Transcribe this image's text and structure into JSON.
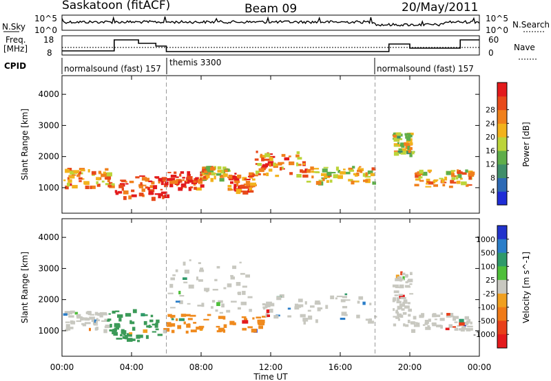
{
  "header": {
    "station": "Saskatoon (fitACF)",
    "beam": "Beam 09",
    "date": "20/May/2011"
  },
  "noise_panel": {
    "left_label": "N.Sky",
    "right_label": "N.Search",
    "left_ticks": [
      "10^5",
      "10^0"
    ],
    "right_ticks": [
      "10^5",
      "10^0"
    ]
  },
  "freq_panel": {
    "label_top": "Freq.",
    "label_unit": "[MHz]",
    "left_ticks": [
      "18",
      "8"
    ],
    "right_ticks": [
      "60",
      "0"
    ],
    "right_label": "Nave"
  },
  "cpid": {
    "label": "CPID",
    "segments": [
      {
        "name": "normalsound (fast) 157",
        "start_hour": 0.0
      },
      {
        "name": "themis 3300",
        "start_hour": 6.0
      },
      {
        "name": "normalsound (fast) 157",
        "start_hour": 18.0
      }
    ]
  },
  "chart_data": [
    {
      "type": "heatmap",
      "name": "Power",
      "ylabel": "Slant Range [km]",
      "yticks": [
        1000,
        2000,
        3000,
        4000
      ],
      "ylim": [
        180,
        4600
      ],
      "xlim_hours": [
        0,
        24
      ],
      "colorbar": {
        "label": "Power [dB]",
        "ticks": [
          "4",
          "8",
          "12",
          "16",
          "20",
          "24",
          "28"
        ],
        "colors": [
          "#1f2dd6",
          "#2d6ab5",
          "#3f8e6a",
          "#5fae4a",
          "#bcd43a",
          "#f2b21c",
          "#f0801c",
          "#e84a1a",
          "#e31a1c"
        ]
      },
      "bands": [
        {
          "t0": 0.0,
          "t1": 3.0,
          "r0": 1050,
          "r1": 1650,
          "level": 0.7
        },
        {
          "t0": 3.0,
          "t1": 6.0,
          "r0": 700,
          "r1": 1400,
          "level": 0.95
        },
        {
          "t0": 6.0,
          "t1": 8.0,
          "r0": 1000,
          "r1": 1550,
          "level": 0.9
        },
        {
          "t0": 8.0,
          "t1": 9.5,
          "r0": 1300,
          "r1": 1700,
          "level": 0.6
        },
        {
          "t0": 9.5,
          "t1": 11.0,
          "r0": 900,
          "r1": 1500,
          "level": 0.85
        },
        {
          "t0": 11.0,
          "t1": 14.0,
          "r0": 1400,
          "r1": 2200,
          "level": 0.75
        },
        {
          "t0": 14.0,
          "t1": 18.0,
          "r0": 1200,
          "r1": 1700,
          "level": 0.6
        },
        {
          "t0": 19.0,
          "t1": 20.0,
          "r0": 2100,
          "r1": 2800,
          "level": 0.5
        },
        {
          "t0": 20.0,
          "t1": 23.5,
          "r0": 1050,
          "r1": 1600,
          "level": 0.65
        }
      ]
    },
    {
      "type": "heatmap",
      "name": "Velocity",
      "ylabel": "Slant Range [km]",
      "xlabel": "Time UT",
      "yticks": [
        1000,
        2000,
        3000,
        4000
      ],
      "ylim": [
        180,
        4600
      ],
      "xlim_hours": [
        0,
        24
      ],
      "xticks": [
        "00:00",
        "04:00",
        "08:00",
        "12:00",
        "16:00",
        "20:00",
        "00:00"
      ],
      "colorbar": {
        "label": "Velocity [m s^-1]",
        "ticks": [
          "1000",
          "500",
          "100",
          "25",
          "-25",
          "-100",
          "-500",
          "-1000"
        ],
        "colors": [
          "#2233cc",
          "#2b7ec9",
          "#2f9a6a",
          "#4fbf3a",
          "#c8c8c0",
          "#f0a020",
          "#ef7a18",
          "#e8401a",
          "#e31a1c"
        ]
      },
      "bands": [
        {
          "t0": 0.0,
          "t1": 2.5,
          "r0": 1050,
          "r1": 1650,
          "color": "#c8c8c0"
        },
        {
          "t0": 2.5,
          "t1": 5.5,
          "r0": 700,
          "r1": 1700,
          "color": "#3b9a58"
        },
        {
          "t0": 5.5,
          "t1": 11.5,
          "r0": 1000,
          "r1": 1550,
          "color": "#ef8a1e"
        },
        {
          "t0": 6.0,
          "t1": 11.0,
          "r0": 1600,
          "r1": 3300,
          "color": "#c8c8c0"
        },
        {
          "t0": 11.5,
          "t1": 18.0,
          "r0": 1300,
          "r1": 2200,
          "color": "#c8c8c0"
        },
        {
          "t0": 19.0,
          "t1": 20.0,
          "r0": 1200,
          "r1": 3000,
          "color": "#c8c8c0"
        },
        {
          "t0": 20.0,
          "t1": 23.5,
          "r0": 1050,
          "r1": 1600,
          "color": "#c8c8c0"
        }
      ]
    }
  ]
}
